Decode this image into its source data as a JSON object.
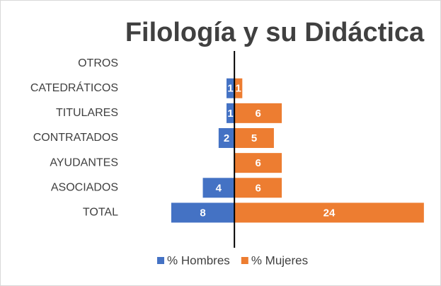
{
  "chart_data": {
    "type": "diverging_bar",
    "title": "Filología y su Didáctica",
    "categories": [
      "OTROS",
      "CATEDRÁTICOS",
      "TITULARES",
      "CONTRATADOS",
      "AYUDANTES",
      "ASOCIADOS",
      "TOTAL"
    ],
    "series": [
      {
        "name": "% Hombres",
        "color": "#4472c4",
        "values": [
          0,
          1,
          1,
          2,
          0,
          4,
          8
        ]
      },
      {
        "name": "% Mujeres",
        "color": "#ed7d31",
        "values": [
          0,
          1,
          6,
          5,
          6,
          6,
          24
        ]
      }
    ],
    "xlim": [
      -14,
      25
    ],
    "legend": "bottom"
  }
}
